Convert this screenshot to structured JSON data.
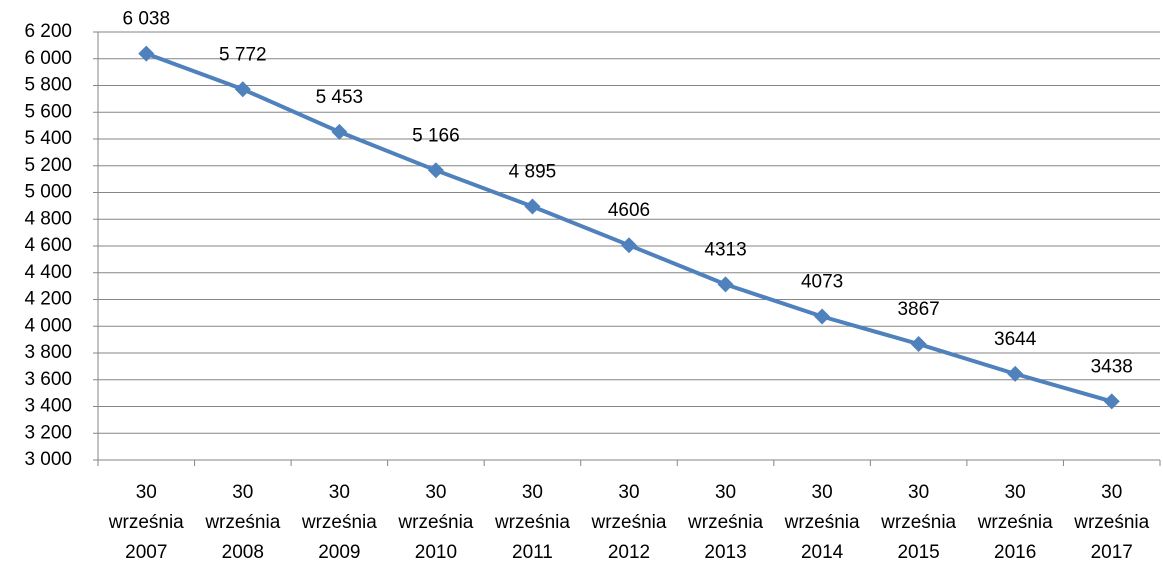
{
  "chart_data": {
    "type": "line",
    "categories": [
      "30 września 2007",
      "30 września 2008",
      "30 września 2009",
      "30 września 2010",
      "30 września 2011",
      "30 września 2012",
      "30 września 2013",
      "30 września 2014",
      "30 września 2015",
      "30 września 2016",
      "30 września 2017"
    ],
    "series": [
      {
        "color": "#4f81bd",
        "values": [
          6038,
          5772,
          5453,
          5166,
          4895,
          4606,
          4313,
          4073,
          3867,
          3644,
          3438
        ],
        "value_labels": [
          "6 038",
          "5 772",
          "5 453",
          "5 166",
          "4 895",
          "4606",
          "4313",
          "4073",
          "3867",
          "3644",
          "3438"
        ]
      }
    ],
    "ylim": [
      3000,
      6200
    ],
    "yticks": [
      {
        "value": 3000,
        "label": "3 000"
      },
      {
        "value": 3200,
        "label": "3 200"
      },
      {
        "value": 3400,
        "label": "3 400"
      },
      {
        "value": 3600,
        "label": "3 600"
      },
      {
        "value": 3800,
        "label": "3 800"
      },
      {
        "value": 4000,
        "label": "4 000"
      },
      {
        "value": 4200,
        "label": "4 200"
      },
      {
        "value": 4400,
        "label": "4 400"
      },
      {
        "value": 4600,
        "label": "4 600"
      },
      {
        "value": 4800,
        "label": "4 800"
      },
      {
        "value": 5000,
        "label": "5 000"
      },
      {
        "value": 5200,
        "label": "5 200"
      },
      {
        "value": 5400,
        "label": "5 400"
      },
      {
        "value": 5600,
        "label": "5 600"
      },
      {
        "value": 5800,
        "label": "5 800"
      },
      {
        "value": 6000,
        "label": "6 000"
      },
      {
        "value": 6200,
        "label": "6 200"
      }
    ],
    "grid": true
  }
}
